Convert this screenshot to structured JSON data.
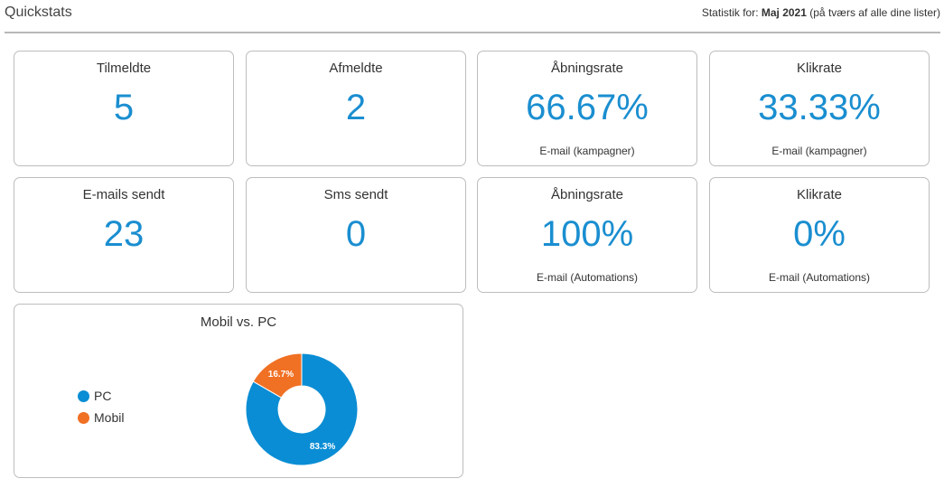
{
  "header": {
    "title": "Quickstats",
    "stat_prefix": "Statistik for:",
    "period": "Maj 2021",
    "scope": "(på tværs af alle dine lister)"
  },
  "cards": [
    {
      "label": "Tilmeldte",
      "value": "5",
      "sub": ""
    },
    {
      "label": "Afmeldte",
      "value": "2",
      "sub": ""
    },
    {
      "label": "Åbningsrate",
      "value": "66.67%",
      "sub": "E-mail (kampagner)"
    },
    {
      "label": "Klikrate",
      "value": "33.33%",
      "sub": "E-mail (kampagner)"
    },
    {
      "label": "E-mails sendt",
      "value": "23",
      "sub": ""
    },
    {
      "label": "Sms sendt",
      "value": "0",
      "sub": ""
    },
    {
      "label": "Åbningsrate",
      "value": "100%",
      "sub": "E-mail (Automations)"
    },
    {
      "label": "Klikrate",
      "value": "0%",
      "sub": "E-mail (Automations)"
    }
  ],
  "chart_data": {
    "type": "pie",
    "title": "Mobil vs. PC",
    "categories": [
      "PC",
      "Mobil"
    ],
    "values": [
      83.3,
      16.7
    ],
    "value_labels": [
      "83.3%",
      "16.7%"
    ],
    "colors": [
      "#0a8dd4",
      "#f07024"
    ],
    "donut": true,
    "legend": "left"
  }
}
